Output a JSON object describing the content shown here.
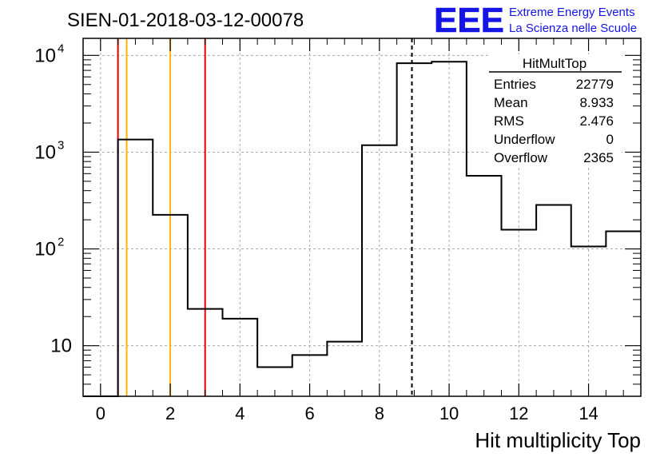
{
  "title": "SIEN-01-2018-03-12-00078",
  "logo": {
    "text": "EEE",
    "line1": "Extreme Energy Events",
    "line2": "La Scienza nelle Scuole",
    "color": "#1515e6"
  },
  "stats_box": {
    "title": "HitMultTop",
    "rows": [
      {
        "label": "Entries",
        "value": "22779"
      },
      {
        "label": "Mean",
        "value": "8.933"
      },
      {
        "label": "RMS",
        "value": "2.476"
      },
      {
        "label": "Underflow",
        "value": "0"
      },
      {
        "label": "Overflow",
        "value": "2365"
      }
    ]
  },
  "chart_data": {
    "type": "histogram",
    "xlabel": "Hit multiplicity Top",
    "ylabel": "",
    "xlim": [
      -0.5,
      15.5
    ],
    "ylim": [
      3,
      15000
    ],
    "yscale": "log",
    "grid": true,
    "x_ticks": [
      0,
      2,
      4,
      6,
      8,
      10,
      12,
      14
    ],
    "x_tick_labels": [
      "0",
      "2",
      "4",
      "6",
      "8",
      "10",
      "12",
      "14"
    ],
    "y_ticks": [
      {
        "value": 10,
        "base": "10",
        "exp": ""
      },
      {
        "value": 100,
        "base": "10",
        "exp": "2"
      },
      {
        "value": 1000,
        "base": "10",
        "exp": "3"
      },
      {
        "value": 10000,
        "base": "10",
        "exp": "4"
      }
    ],
    "bins": [
      {
        "lo": -0.5,
        "hi": 0.5,
        "count": 0
      },
      {
        "lo": 0.5,
        "hi": 1.5,
        "count": 1350
      },
      {
        "lo": 1.5,
        "hi": 2.5,
        "count": 225
      },
      {
        "lo": 2.5,
        "hi": 3.5,
        "count": 24
      },
      {
        "lo": 3.5,
        "hi": 4.5,
        "count": 19
      },
      {
        "lo": 4.5,
        "hi": 5.5,
        "count": 6
      },
      {
        "lo": 5.5,
        "hi": 6.5,
        "count": 8
      },
      {
        "lo": 6.5,
        "hi": 7.5,
        "count": 11
      },
      {
        "lo": 7.5,
        "hi": 8.5,
        "count": 1180
      },
      {
        "lo": 8.5,
        "hi": 9.5,
        "count": 8300
      },
      {
        "lo": 9.5,
        "hi": 10.5,
        "count": 8600
      },
      {
        "lo": 10.5,
        "hi": 11.5,
        "count": 570
      },
      {
        "lo": 11.5,
        "hi": 12.5,
        "count": 158
      },
      {
        "lo": 12.5,
        "hi": 13.5,
        "count": 285
      },
      {
        "lo": 13.5,
        "hi": 14.5,
        "count": 106
      },
      {
        "lo": 14.5,
        "hi": 15.5,
        "count": 152
      }
    ],
    "vertical_lines": [
      {
        "x": 0.5,
        "color": "#e00000",
        "style": "solid"
      },
      {
        "x": 0.75,
        "color": "#ffb400",
        "style": "solid"
      },
      {
        "x": 2.0,
        "color": "#ffb400",
        "style": "solid"
      },
      {
        "x": 3.0,
        "color": "#e00000",
        "style": "solid"
      },
      {
        "x": 8.933,
        "color": "#000000",
        "style": "dashed"
      }
    ]
  }
}
